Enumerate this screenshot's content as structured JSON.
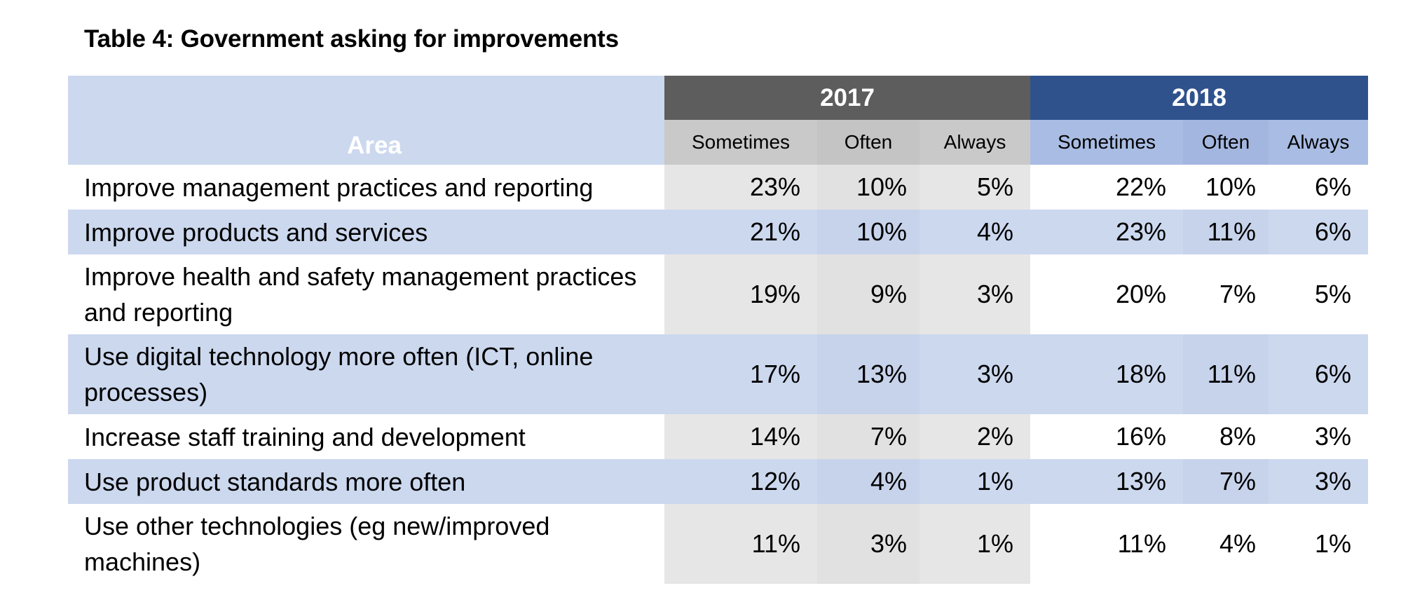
{
  "title": "Table 4: Government asking for improvements",
  "colors": {
    "header_2017": "#5d5d5d",
    "header_2018": "#2f528d",
    "band_blue": "#ccd8ee",
    "col_2017_grey": "#e6e6e6",
    "subheader_2017": "#c9c9c9",
    "subheader_2018": "#a9bce3"
  },
  "chart_data": {
    "type": "table",
    "title": "Table 4: Government asking for improvements",
    "row_header": "Area",
    "years": [
      "2017",
      "2018"
    ],
    "subcolumns": [
      "Sometimes",
      "Often",
      "Always"
    ],
    "rows": [
      {
        "area": "Improve management practices and reporting",
        "y2017": [
          "23%",
          "10%",
          "5%"
        ],
        "y2018": [
          "22%",
          "10%",
          "6%"
        ]
      },
      {
        "area": "Improve products and services",
        "y2017": [
          "21%",
          "10%",
          "4%"
        ],
        "y2018": [
          "23%",
          "11%",
          "6%"
        ]
      },
      {
        "area": "Improve health and safety management practices and reporting",
        "y2017": [
          "19%",
          "9%",
          "3%"
        ],
        "y2018": [
          "20%",
          "7%",
          "5%"
        ]
      },
      {
        "area": "Use digital technology more often (ICT, online processes)",
        "y2017": [
          "17%",
          "13%",
          "3%"
        ],
        "y2018": [
          "18%",
          "11%",
          "6%"
        ]
      },
      {
        "area": "Increase staff training and development",
        "y2017": [
          "14%",
          "7%",
          "2%"
        ],
        "y2018": [
          "16%",
          "8%",
          "3%"
        ]
      },
      {
        "area": "Use product standards more often",
        "y2017": [
          "12%",
          "4%",
          "1%"
        ],
        "y2018": [
          "13%",
          "7%",
          "3%"
        ]
      },
      {
        "area": "Use other technologies (eg new/improved machines)",
        "y2017": [
          "11%",
          "3%",
          "1%"
        ],
        "y2018": [
          "11%",
          "4%",
          "1%"
        ]
      }
    ]
  }
}
